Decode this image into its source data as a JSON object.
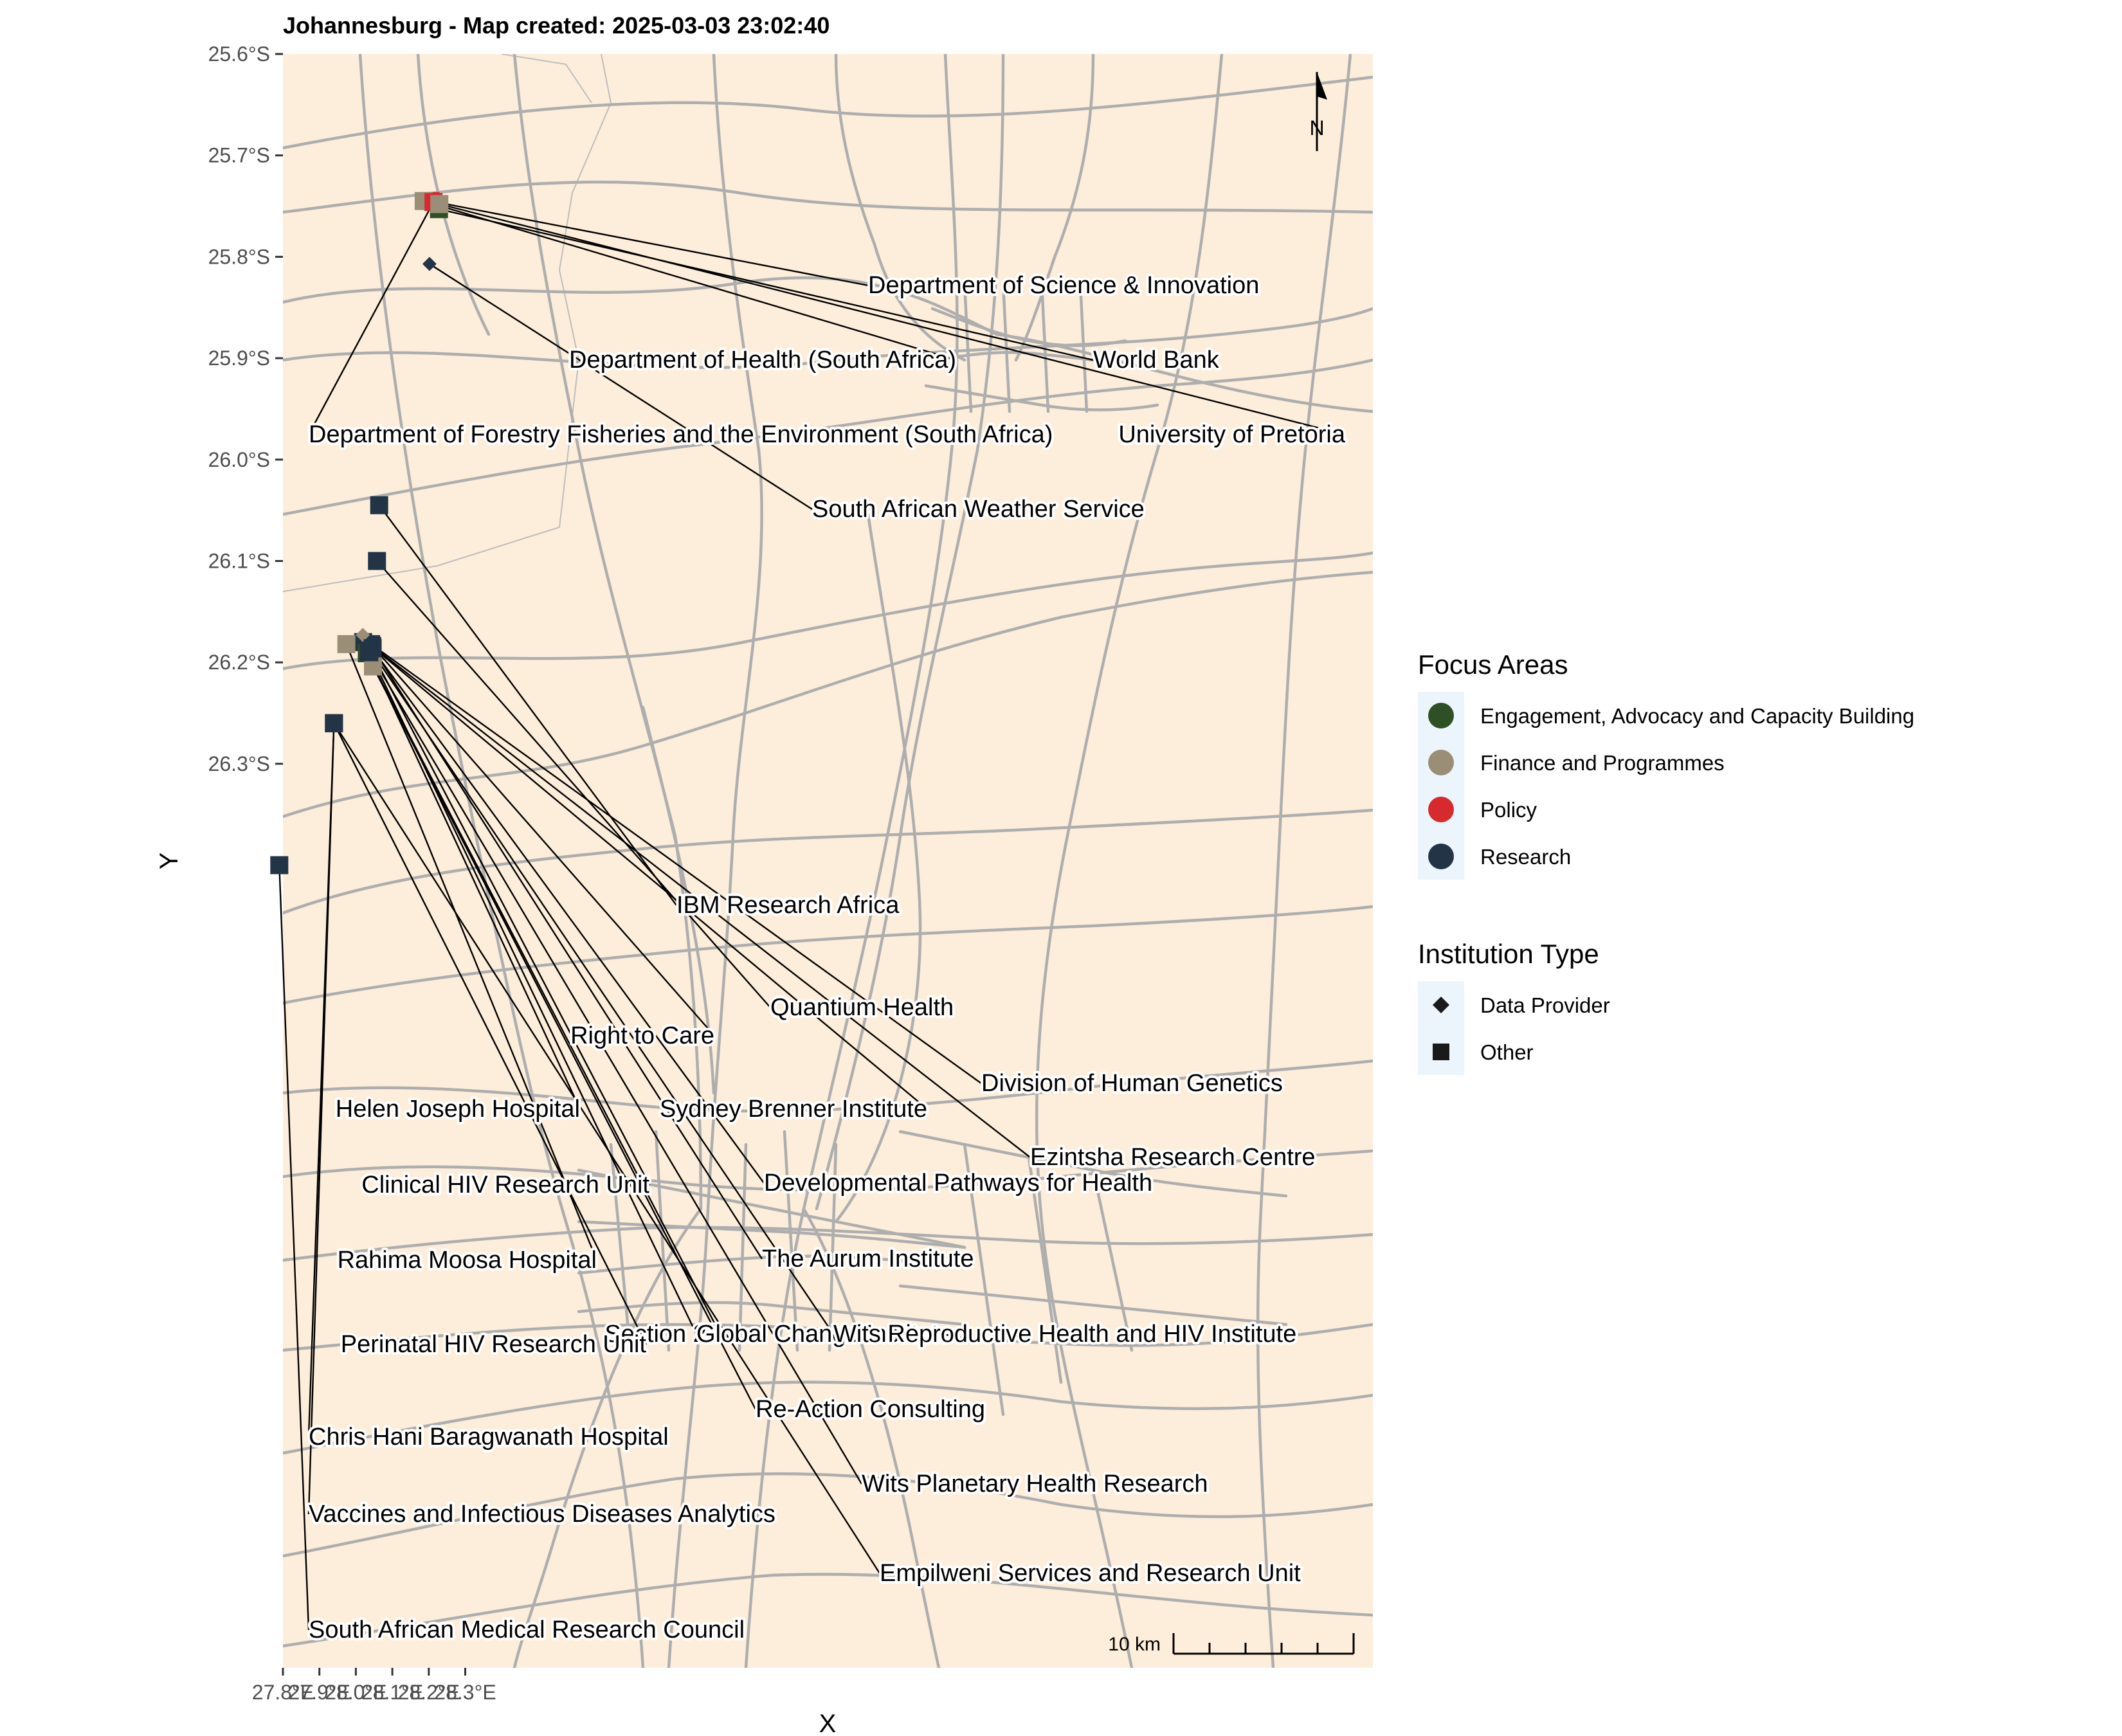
{
  "title": "Johannesburg - Map created: 2025-03-03 23:02:40",
  "axes": {
    "x_title": "X",
    "y_title": "Y",
    "x_ticks": [
      "27.8°E",
      "27.9°E",
      "28.0°E",
      "28.1°E",
      "28.2°E",
      "28.3°E"
    ],
    "y_ticks": [
      "25.6°S",
      "25.7°S",
      "25.8°S",
      "25.9°S",
      "26.0°S",
      "26.1°S",
      "26.2°S",
      "26.3°S"
    ]
  },
  "map": {
    "background_color": "#fdeedb",
    "road_color": "#aeaeae",
    "north_arrow_label": "N",
    "scale_bar_label": "10 km"
  },
  "legend": {
    "focus_title": "Focus Areas",
    "focus_items": [
      {
        "label": "Engagement, Advocacy and Capacity Building",
        "color": "#2f5024"
      },
      {
        "label": "Finance and Programmes",
        "color": "#9a8e76"
      },
      {
        "label": "Policy",
        "color": "#d62a2f"
      },
      {
        "label": "Research",
        "color": "#243447"
      }
    ],
    "type_title": "Institution Type",
    "type_items": [
      {
        "label": "Data Provider",
        "shape": "diamond"
      },
      {
        "label": "Other",
        "shape": "square"
      }
    ]
  },
  "places": [
    {
      "label": "Department of Science & Innovation",
      "focus": "Policy",
      "type": "Other",
      "lon": 28.205,
      "lat": -25.745
    },
    {
      "label": "Department of Health (South Africa)",
      "focus": "Finance and Programmes",
      "type": "Other",
      "lon": 28.186,
      "lat": -25.745
    },
    {
      "label": "World Bank",
      "focus": "Engagement, Advocacy and Capacity Building",
      "type": "Other",
      "lon": 28.228,
      "lat": -25.753
    },
    {
      "label": "Department of Forestry Fisheries and the Environment (South Africa)",
      "focus": "Policy",
      "type": "Other",
      "lon": 28.213,
      "lat": -25.746
    },
    {
      "label": "University of Pretoria",
      "focus": "Finance and Programmes",
      "type": "Other",
      "lon": 28.229,
      "lat": -25.748
    },
    {
      "label": "South African Weather Service",
      "focus": "Research",
      "type": "Data Provider",
      "lon": 28.202,
      "lat": -25.807
    },
    {
      "label": "IBM Research Africa",
      "focus": "Research",
      "type": "Other",
      "lon": 28.064,
      "lat": -26.045
    },
    {
      "label": "Quantium Health",
      "focus": "Research",
      "type": "Other",
      "lon": 28.058,
      "lat": -26.1
    },
    {
      "label": "Right to Care",
      "focus": "Finance and Programmes",
      "type": "Data Provider",
      "lon": 28.019,
      "lat": -26.173
    },
    {
      "label": "Helen Joseph Hospital",
      "focus": "Research",
      "type": "Other",
      "lon": 28.02,
      "lat": -26.18
    },
    {
      "label": "Sydney Brenner Institute",
      "focus": "Research",
      "type": "Other",
      "lon": 28.04,
      "lat": -26.183
    },
    {
      "label": "Division of Human Genetics",
      "focus": "Research",
      "type": "Other",
      "lon": 28.042,
      "lat": -26.182
    },
    {
      "label": "Ezintsha Research Centre",
      "focus": "Research",
      "type": "Other",
      "lon": 28.045,
      "lat": -26.184
    },
    {
      "label": "Clinical HIV Research Unit",
      "focus": "Finance and Programmes",
      "type": "Data Provider",
      "lon": 28.019,
      "lat": -26.173
    },
    {
      "label": "Developmental Pathways for Health",
      "focus": "Research",
      "type": "Data Provider",
      "lon": 28.044,
      "lat": -26.186
    },
    {
      "label": "Rahima Moosa Hospital",
      "focus": "Finance and Programmes",
      "type": "Other",
      "lon": 27.974,
      "lat": -26.182
    },
    {
      "label": "The Aurum Institute",
      "focus": "Research",
      "type": "Other",
      "lon": 28.046,
      "lat": -26.186
    },
    {
      "label": "Section 27",
      "focus": "Engagement, Advocacy and Capacity Building",
      "type": "Other",
      "lon": 28.03,
      "lat": -26.191
    },
    {
      "label": "Global Change Institute",
      "focus": "Research",
      "type": "Other",
      "lon": 28.036,
      "lat": -26.189
    },
    {
      "label": "Wits Reproductive Health and HIV Institute",
      "focus": "Research",
      "type": "Other",
      "lon": 28.043,
      "lat": -26.189
    },
    {
      "label": "Perinatal HIV Research Unit",
      "focus": "Research",
      "type": "Other",
      "lon": 27.94,
      "lat": -26.26
    },
    {
      "label": "Re-Action Consulting",
      "focus": "Finance and Programmes",
      "type": "Other",
      "lon": 28.047,
      "lat": -26.204
    },
    {
      "label": "Chris Hani Baragwanath Hospital",
      "focus": "Finance and Programmes",
      "type": "Data Provider",
      "lon": 27.94,
      "lat": -26.26
    },
    {
      "label": "Wits Planetary Health Research",
      "focus": "Research",
      "type": "Other",
      "lon": 28.037,
      "lat": -26.19
    },
    {
      "label": "Vaccines and Infectious Diseases Analytics",
      "focus": "Research",
      "type": "Other",
      "lon": 27.94,
      "lat": -26.26
    },
    {
      "label": "Empilweni Services and Research Unit",
      "focus": "Research",
      "type": "Other",
      "lon": 27.94,
      "lat": -26.26
    },
    {
      "label": "South African Medical Research Council",
      "focus": "Research",
      "type": "Other",
      "lon": 27.79,
      "lat": -26.4
    }
  ]
}
